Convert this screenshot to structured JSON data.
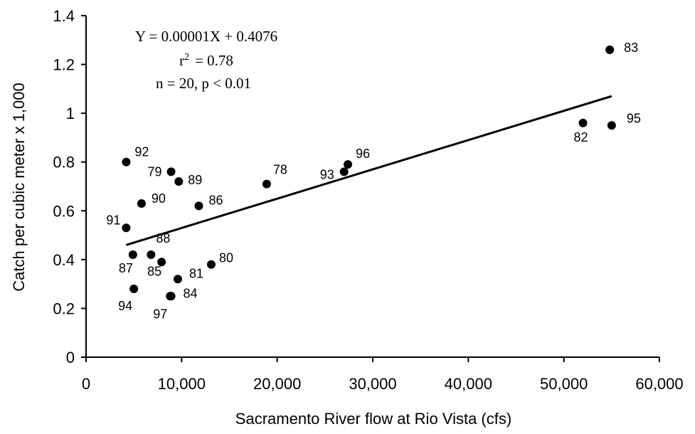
{
  "chart_data": {
    "type": "scatter",
    "xlabel": "Sacramento River flow at Rio Vista (cfs)",
    "ylabel": "Catch per cubic meter x 1,000",
    "xlim": [
      0,
      60000
    ],
    "ylim": [
      0,
      1.4
    ],
    "x_ticks": [
      "0",
      "10,000",
      "20,000",
      "30,000",
      "40,000",
      "50,000",
      "60,000"
    ],
    "y_ticks": [
      "0",
      "0.2",
      "0.4",
      "0.6",
      "0.8",
      "1",
      "1.2",
      "1.4"
    ],
    "grid": false,
    "annotation": {
      "equation": "Y = 0.00001X + 0.4076",
      "r2_prefix": "r",
      "r2_sup": "2",
      "r2_value": "= 0.78",
      "stats": "n = 20, p < 0.01"
    },
    "regression": {
      "x": [
        4200,
        55000
      ],
      "y": [
        0.46,
        1.07
      ]
    },
    "points": [
      {
        "label": "83",
        "x": 54800,
        "y": 1.26
      },
      {
        "label": "82",
        "x": 52000,
        "y": 0.96
      },
      {
        "label": "95",
        "x": 55000,
        "y": 0.95
      },
      {
        "label": "92",
        "x": 4200,
        "y": 0.8
      },
      {
        "label": "96",
        "x": 27400,
        "y": 0.79
      },
      {
        "label": "79",
        "x": 8900,
        "y": 0.76
      },
      {
        "label": "93",
        "x": 27000,
        "y": 0.76
      },
      {
        "label": "89",
        "x": 9700,
        "y": 0.72
      },
      {
        "label": "78",
        "x": 18900,
        "y": 0.71
      },
      {
        "label": "90",
        "x": 5800,
        "y": 0.63
      },
      {
        "label": "86",
        "x": 11800,
        "y": 0.62
      },
      {
        "label": "91",
        "x": 4200,
        "y": 0.53
      },
      {
        "label": "87",
        "x": 4900,
        "y": 0.42
      },
      {
        "label": "88",
        "x": 6800,
        "y": 0.42
      },
      {
        "label": "85",
        "x": 7900,
        "y": 0.39
      },
      {
        "label": "80",
        "x": 13100,
        "y": 0.38
      },
      {
        "label": "81",
        "x": 9600,
        "y": 0.32
      },
      {
        "label": "94",
        "x": 5000,
        "y": 0.28
      },
      {
        "label": "84",
        "x": 8900,
        "y": 0.25
      },
      {
        "label": "97",
        "x": 8800,
        "y": 0.25
      }
    ]
  }
}
